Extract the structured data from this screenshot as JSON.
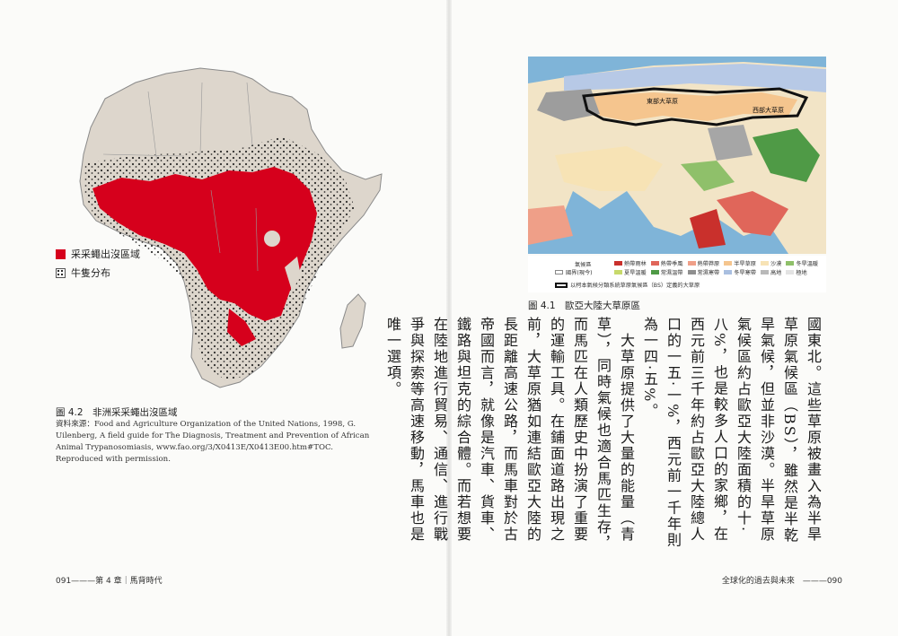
{
  "left_page": {
    "legend": {
      "tsetse_label": "采采蠅出沒區域",
      "cattle_label": "牛隻分布"
    },
    "figure_caption": "圖 4.2　非洲采采蠅出沒區域",
    "source_label": "資料來源：",
    "source_text": "Food and Agriculture Organization of the United Nations, 1998, G. Uilenberg, A field guide for The Diagnosis, Treatment and Prevention of African Animal Trypanosomiasis, www.fao.org/3/X0413E/X0413E00.htm#TOC. Reproduced with permission.",
    "folio": "091———第 4 章｜馬背時代"
  },
  "right_page": {
    "map_labels": {
      "east_steppe": "東部大草原",
      "west_steppe": "西部大草原"
    },
    "climate_legend": {
      "title": "氣候區",
      "row1": [
        {
          "label": "熱帶雨林",
          "color": "#c9302c"
        },
        {
          "label": "熱帶季風",
          "color": "#e0665a"
        },
        {
          "label": "熱帶莽原",
          "color": "#ef9f88"
        },
        {
          "label": "半旱草原",
          "color": "#f5c58e"
        },
        {
          "label": "沙漠",
          "color": "#f7e3b5"
        },
        {
          "label": "冬旱溫暖",
          "color": "#8fc06a"
        }
      ],
      "row2": [
        {
          "label": "夏旱溫暖",
          "color": "#c7d96b"
        },
        {
          "label": "常濕溫帶",
          "color": "#4f9a46"
        },
        {
          "label": "常濕寒帶",
          "color": "#8f8f8f"
        },
        {
          "label": "冬旱寒帶",
          "color": "#a9bfe0"
        },
        {
          "label": "高地",
          "color": "#b9b9b9"
        },
        {
          "label": "極地",
          "color": "#e3e3e3"
        }
      ],
      "border_label": "國界(現今)",
      "steppe_label": "以柯本氣候分類系統草原氣候區（BS）定義的大草原"
    },
    "figure_caption": "圖 4.1　歐亞大陸大草原區",
    "body_paragraphs": [
      "國東北。這些草原被畫入為半旱草原氣候區（BS），雖然是半乾旱氣候，但並非沙漠。半旱草原氣候區約占歐亞大陸面積的十‧八%，也是較多人口的家鄉，在西元前三千年約占歐亞大陸總人口的一五‧一%，西元前一千年則為一四‧五%。",
      "　大草原提供了大量的能量（青草），同時氣候也適合馬匹生存，而馬匹在人類歷史中扮演了重要的運輸工具。在鋪面道路出現之前，大草原猶如連結歐亞大陸的長距離高速公路，而馬車對於古帝國而言，就像是汽車、貨車、鐵路與坦克的綜合體。而若想要在陸地進行貿易、通信、進行戰爭與探索等高速移動，馬車也是唯一選項。"
    ],
    "folio": "全球化的過去與未來　———090"
  }
}
